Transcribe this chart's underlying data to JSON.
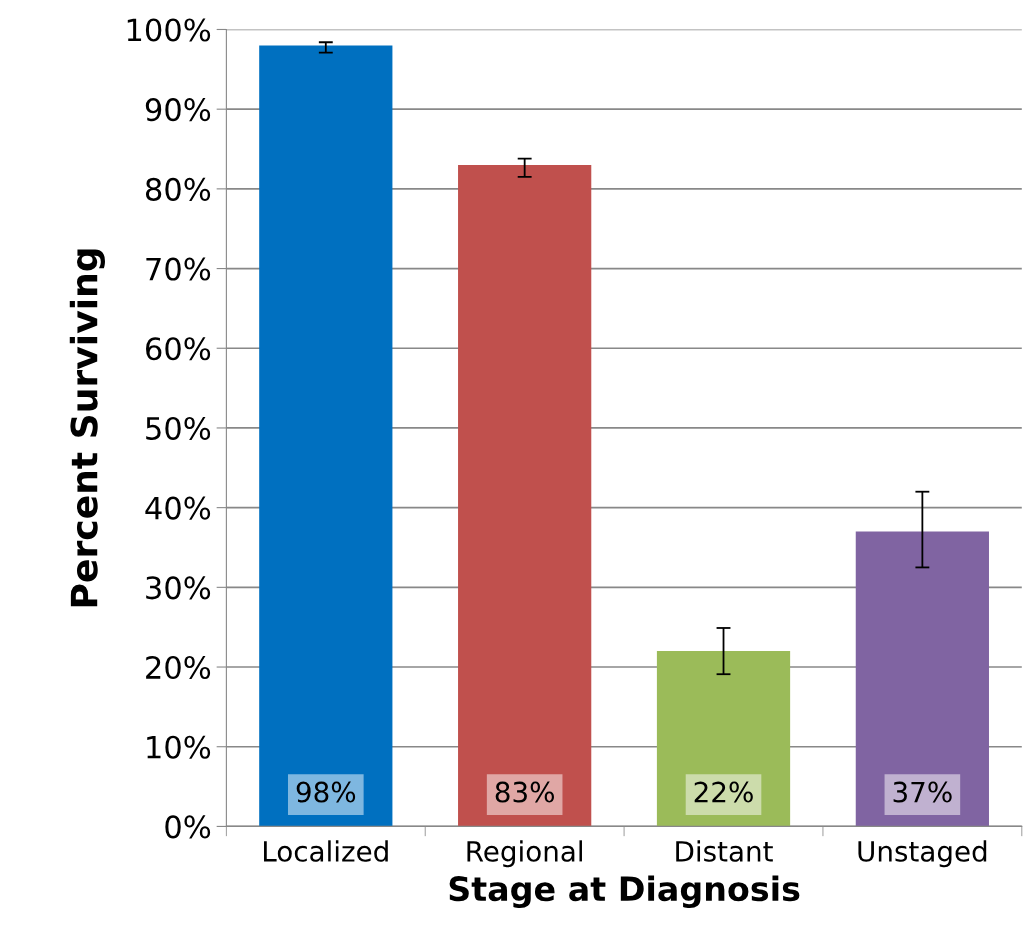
{
  "chart_data": {
    "type": "bar",
    "xlabel": "Stage at Diagnosis",
    "ylabel": "Percent Surviving",
    "categories": [
      "Localized",
      "Regional",
      "Distant",
      "Unstaged"
    ],
    "values": [
      98,
      83,
      22,
      37
    ],
    "colors": [
      "#0070c0",
      "#c0504d",
      "#9bbb59",
      "#8064a2"
    ],
    "errors": [
      [
        97.1,
        98.4
      ],
      [
        81.5,
        83.8
      ],
      [
        19.1,
        24.9
      ],
      [
        32.5,
        42.0
      ]
    ],
    "value_labels": [
      "98%",
      "83%",
      "22%",
      "37%"
    ],
    "ylim": [
      0,
      100
    ],
    "yticks": [
      {
        "value": 0,
        "label": "0%"
      },
      {
        "value": 10,
        "label": "10%"
      },
      {
        "value": 20,
        "label": "20%"
      },
      {
        "value": 30,
        "label": "30%"
      },
      {
        "value": 40,
        "label": "40%"
      },
      {
        "value": 50,
        "label": "50%"
      },
      {
        "value": 60,
        "label": "60%"
      },
      {
        "value": 70,
        "label": "70%"
      },
      {
        "value": 80,
        "label": "80%"
      },
      {
        "value": 90,
        "label": "90%"
      },
      {
        "value": 100,
        "label": "100%"
      }
    ],
    "grid": "y",
    "legend": false
  }
}
